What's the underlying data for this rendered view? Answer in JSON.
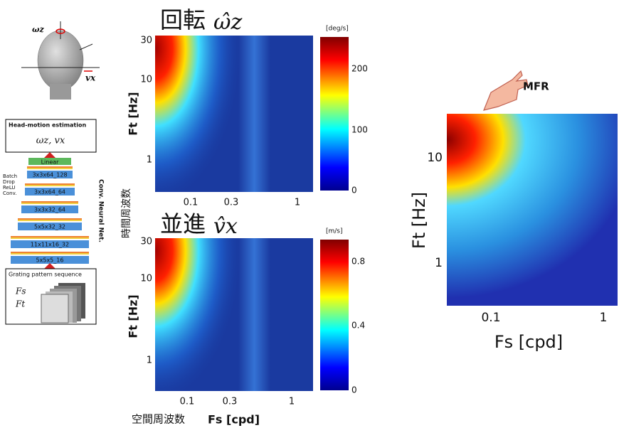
{
  "head": {
    "omega_label": "ωz",
    "v_label": "vx"
  },
  "estimation": {
    "title": "Head-motion estimation",
    "outputs": "ωz, vx"
  },
  "network": {
    "layers": [
      "Linear",
      "3x3x64_128",
      "3x3x64_64",
      "3x3x32_64",
      "5x5x32_32",
      "11x11x16_32",
      "5x5x5_16"
    ],
    "legend": [
      "Batch",
      "Drop",
      "ReLU",
      "Conv."
    ],
    "label": "Conv. Neural Net."
  },
  "input": {
    "title": "Grating pattern sequence",
    "fs": "Fs",
    "ft": "Ft"
  },
  "shared_y_label": "時間周波数",
  "shared_x_label": "空間周波数",
  "rotation_panel": {
    "title": "回転",
    "symbol": "ω̂z",
    "unit": "[deg/s]",
    "colorbar_ticks": [
      "200",
      "100",
      "0"
    ],
    "y_ticks": [
      "30",
      "10",
      "1"
    ],
    "x_ticks": [
      "0.1",
      "0.3",
      "1"
    ],
    "y_label": "Ft [Hz]"
  },
  "translation_panel": {
    "title": "並進",
    "symbol": "v̂x",
    "unit": "[m/s]",
    "colorbar_ticks": [
      "0.8",
      "0.4",
      "0"
    ],
    "y_ticks": [
      "30",
      "10",
      "1"
    ],
    "x_ticks": [
      "0.1",
      "0.3",
      "1"
    ],
    "y_label": "Ft [Hz]",
    "x_label": "Fs [cpd]"
  },
  "mfr_panel": {
    "badge": "MFR",
    "y_ticks": [
      "10",
      "1"
    ],
    "x_ticks": [
      "0.1",
      "1"
    ],
    "y_label": "Ft [Hz]",
    "x_label": "Fs [cpd]"
  }
}
